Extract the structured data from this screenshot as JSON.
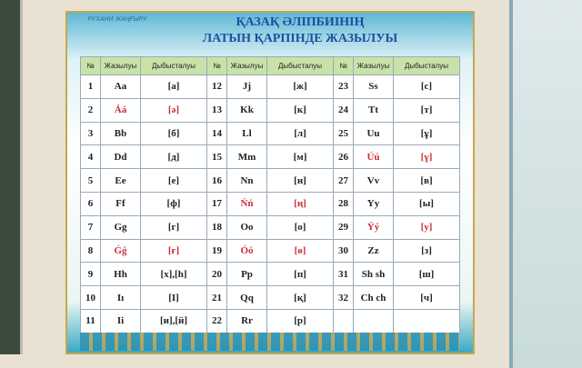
{
  "poster": {
    "logo": "РУХАНИ ЖАҢҒЫРУ",
    "title": [
      "ҚАЗАҚ ӘЛІПБИІНІҢ",
      "ЛАТЫН ҚАРПІНДЕ ЖАЗЫЛУЫ"
    ]
  },
  "table": {
    "header": [
      "№",
      "Жазылуы",
      "Дыбысталуы"
    ],
    "groups": [
      {
        "rows": [
          {
            "n": 1,
            "letter": "Aa",
            "sound": "[а]",
            "accent": false
          },
          {
            "n": 2,
            "letter": "Áá",
            "sound": "[ә]",
            "accent": true
          },
          {
            "n": 3,
            "letter": "Bb",
            "sound": "[б]",
            "accent": false
          },
          {
            "n": 4,
            "letter": "Dd",
            "sound": "[д]",
            "accent": false
          },
          {
            "n": 5,
            "letter": "Ee",
            "sound": "[е]",
            "accent": false
          },
          {
            "n": 6,
            "letter": "Ff",
            "sound": "[ф]",
            "accent": false
          },
          {
            "n": 7,
            "letter": "Gg",
            "sound": "[г]",
            "accent": false
          },
          {
            "n": 8,
            "letter": "Ǵǵ",
            "sound": "[ғ]",
            "accent": true
          },
          {
            "n": 9,
            "letter": "Hh",
            "sound": "[х],[һ]",
            "accent": false
          },
          {
            "n": 10,
            "letter": "Iı",
            "sound": "[І]",
            "accent": false
          },
          {
            "n": 11,
            "letter": "Ii",
            "sound": "[и],[й]",
            "accent": false
          }
        ]
      },
      {
        "rows": [
          {
            "n": 12,
            "letter": "Jj",
            "sound": "[ж]",
            "accent": false
          },
          {
            "n": 13,
            "letter": "Kk",
            "sound": "[к]",
            "accent": false
          },
          {
            "n": 14,
            "letter": "Ll",
            "sound": "[л]",
            "accent": false
          },
          {
            "n": 15,
            "letter": "Mm",
            "sound": "[м]",
            "accent": false
          },
          {
            "n": 16,
            "letter": "Nn",
            "sound": "[н]",
            "accent": false
          },
          {
            "n": 17,
            "letter": "Ńń",
            "sound": "[ң]",
            "accent": true
          },
          {
            "n": 18,
            "letter": "Oo",
            "sound": "[о]",
            "accent": false
          },
          {
            "n": 19,
            "letter": "Óó",
            "sound": "[ө]",
            "accent": true
          },
          {
            "n": 20,
            "letter": "Pp",
            "sound": "[п]",
            "accent": false
          },
          {
            "n": 21,
            "letter": "Qq",
            "sound": "[қ]",
            "accent": false
          },
          {
            "n": 22,
            "letter": "Rr",
            "sound": "[р]",
            "accent": false
          }
        ]
      },
      {
        "rows": [
          {
            "n": 23,
            "letter": "Ss",
            "sound": "[с]",
            "accent": false
          },
          {
            "n": 24,
            "letter": "Tt",
            "sound": "[т]",
            "accent": false
          },
          {
            "n": 25,
            "letter": "Uu",
            "sound": "[ұ]",
            "accent": false
          },
          {
            "n": 26,
            "letter": "Úú",
            "sound": "[ү]",
            "accent": true
          },
          {
            "n": 27,
            "letter": "Vv",
            "sound": "[в]",
            "accent": false
          },
          {
            "n": 28,
            "letter": "Yy",
            "sound": "[ы]",
            "accent": false
          },
          {
            "n": 29,
            "letter": "Ýý",
            "sound": "[у]",
            "accent": true
          },
          {
            "n": 30,
            "letter": "Zz",
            "sound": "[з]",
            "accent": false
          },
          {
            "n": 31,
            "letter": "Sh sh",
            "sound": "[ш]",
            "accent": false
          },
          {
            "n": 32,
            "letter": "Ch ch",
            "sound": "[ч]",
            "accent": false
          }
        ]
      }
    ]
  }
}
